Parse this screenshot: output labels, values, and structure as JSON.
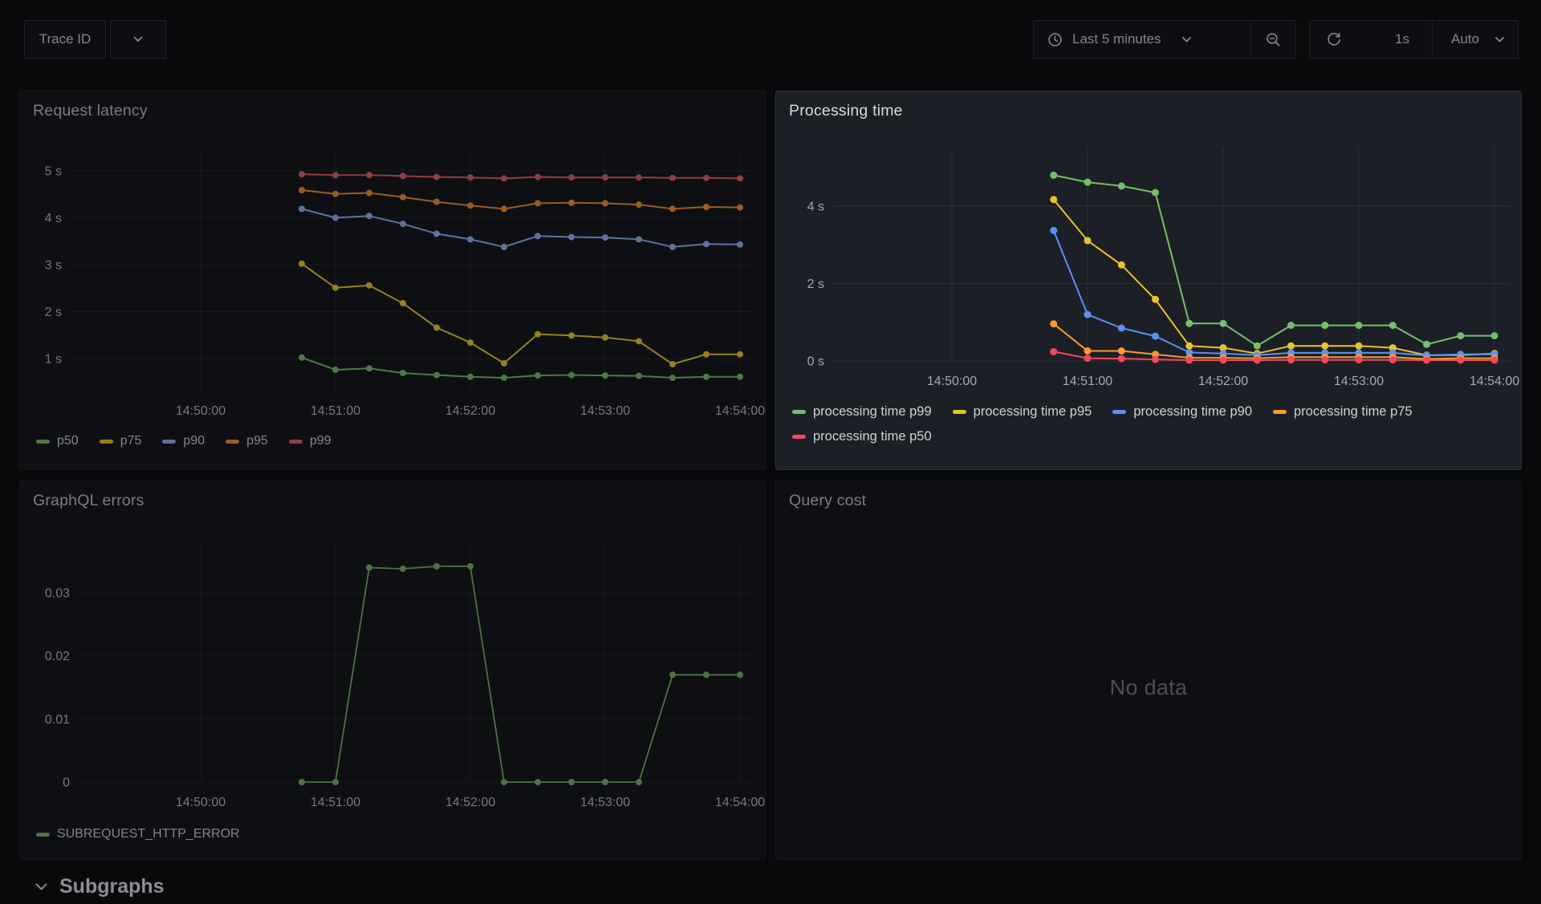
{
  "toolbar": {
    "variable": {
      "label": "Trace ID"
    },
    "time_picker": {
      "label": "Last 5 minutes"
    },
    "refresh": {
      "interval": "1s",
      "mode": "Auto"
    }
  },
  "panels": {
    "request_latency": {
      "title": "Request latency",
      "chart_data": {
        "type": "line",
        "unit": "seconds",
        "x_start": "14:50:45",
        "x_step_seconds": 15,
        "x_ticks": [
          "14:50:00",
          "14:51:00",
          "14:52:00",
          "14:53:00",
          "14:54:00"
        ],
        "y_ticks": [
          {
            "value": 5,
            "label": "5 s"
          },
          {
            "value": 4,
            "label": "4 s"
          },
          {
            "value": 3,
            "label": "3 s"
          },
          {
            "value": 2,
            "label": "2 s"
          },
          {
            "value": 1,
            "label": "1 s"
          }
        ],
        "series": [
          {
            "name": "p50",
            "color": "#4c7a45",
            "values": [
              1.02,
              0.76,
              0.79,
              0.69,
              0.65,
              0.61,
              0.59,
              0.64,
              0.65,
              0.64,
              0.63,
              0.59,
              0.61,
              0.61
            ]
          },
          {
            "name": "p75",
            "color": "#96801f",
            "values": [
              3.02,
              2.51,
              2.56,
              2.18,
              1.66,
              1.34,
              0.9,
              1.52,
              1.49,
              1.45,
              1.37,
              0.88,
              1.09,
              1.09
            ]
          },
          {
            "name": "p90",
            "color": "#5b73a0",
            "values": [
              4.19,
              4.0,
              4.04,
              3.87,
              3.66,
              3.54,
              3.38,
              3.61,
              3.59,
              3.58,
              3.54,
              3.38,
              3.44,
              3.43
            ]
          },
          {
            "name": "p95",
            "color": "#9c5c23",
            "values": [
              4.59,
              4.51,
              4.53,
              4.44,
              4.34,
              4.26,
              4.19,
              4.31,
              4.32,
              4.31,
              4.28,
              4.19,
              4.23,
              4.22
            ]
          },
          {
            "name": "p99",
            "color": "#8e3e44",
            "values": [
              4.93,
              4.91,
              4.91,
              4.89,
              4.87,
              4.86,
              4.84,
              4.87,
              4.86,
              4.86,
              4.86,
              4.85,
              4.85,
              4.84
            ]
          }
        ]
      }
    },
    "processing_time": {
      "title": "Processing time",
      "chart_data": {
        "type": "line",
        "unit": "seconds",
        "x_start": "14:50:45",
        "x_step_seconds": 15,
        "x_ticks": [
          "14:50:00",
          "14:51:00",
          "14:52:00",
          "14:53:00",
          "14:54:00"
        ],
        "y_ticks": [
          {
            "value": 4,
            "label": "4 s"
          },
          {
            "value": 2,
            "label": "2 s"
          },
          {
            "value": 0,
            "label": "0 s"
          }
        ],
        "series": [
          {
            "name": "processing time p99",
            "color": "#73BF69",
            "values": [
              4.8,
              4.62,
              4.52,
              4.35,
              0.97,
              0.97,
              0.39,
              0.92,
              0.92,
              0.92,
              0.92,
              0.43,
              0.65,
              0.65
            ]
          },
          {
            "name": "processing time p95",
            "color": "#EAC22E",
            "values": [
              4.17,
              3.11,
              2.48,
              1.59,
              0.39,
              0.34,
              0.19,
              0.39,
              0.39,
              0.39,
              0.34,
              0.15,
              0.15,
              0.19
            ]
          },
          {
            "name": "processing time p90",
            "color": "#5794F2",
            "values": [
              3.37,
              1.2,
              0.85,
              0.64,
              0.22,
              0.19,
              0.15,
              0.21,
              0.21,
              0.21,
              0.21,
              0.14,
              0.17,
              0.17
            ]
          },
          {
            "name": "processing time p75",
            "color": "#FF9830",
            "values": [
              0.96,
              0.26,
              0.26,
              0.17,
              0.08,
              0.08,
              0.07,
              0.1,
              0.1,
              0.1,
              0.1,
              0.05,
              0.07,
              0.07
            ]
          },
          {
            "name": "processing time p50",
            "color": "#F2495C",
            "values": [
              0.24,
              0.07,
              0.06,
              0.04,
              0.02,
              0.02,
              0.02,
              0.03,
              0.03,
              0.03,
              0.03,
              0.02,
              0.02,
              0.02
            ]
          }
        ]
      }
    },
    "graphql_errors": {
      "title": "GraphQL errors",
      "chart_data": {
        "type": "line",
        "unit": "errors",
        "x_start": "14:50:45",
        "x_step_seconds": 15,
        "x_ticks": [
          "14:50:00",
          "14:51:00",
          "14:52:00",
          "14:53:00",
          "14:54:00"
        ],
        "y_ticks": [
          {
            "value": 0.03,
            "label": "0.03"
          },
          {
            "value": 0.02,
            "label": "0.02"
          },
          {
            "value": 0.01,
            "label": "0.01"
          },
          {
            "value": 0,
            "label": "0"
          }
        ],
        "series": [
          {
            "name": "SUBREQUEST_HTTP_ERROR",
            "color": "#4c7344",
            "values": [
              0,
              0,
              0.034,
              0.0338,
              0.0342,
              0.0342,
              0,
              0,
              0,
              0,
              0,
              0.017,
              0.017,
              0.017
            ]
          }
        ]
      }
    },
    "query_cost": {
      "title": "Query cost",
      "no_data": "No data"
    }
  },
  "sections": {
    "subgraphs": {
      "label": "Subgraphs"
    }
  }
}
